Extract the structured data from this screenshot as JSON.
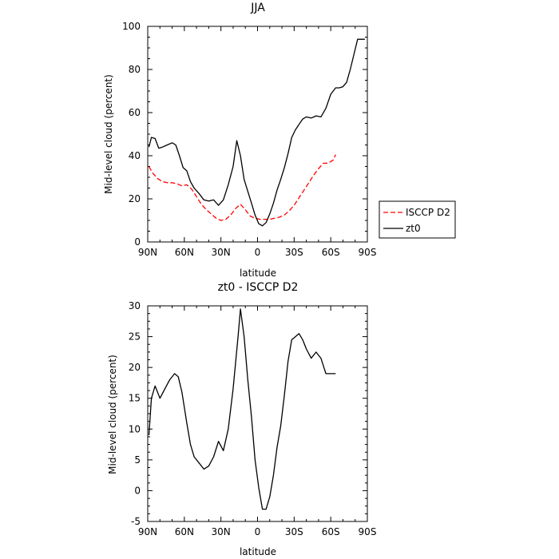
{
  "chart_data": [
    {
      "type": "line",
      "title": "JJA",
      "xlabel": "latitude",
      "ylabel": "Mid-level cloud (percent)",
      "xlim": [
        90,
        -90
      ],
      "ylim": [
        0,
        100
      ],
      "xticks": [
        90,
        60,
        30,
        0,
        -30,
        -60,
        -90
      ],
      "xtick_labels": [
        "90N",
        "60N",
        "30N",
        "0",
        "30S",
        "60S",
        "90S"
      ],
      "yticks": [
        0,
        20,
        40,
        60,
        80,
        100
      ],
      "ytick_labels": [
        "0",
        "20",
        "40",
        "60",
        "80",
        "100"
      ],
      "legend_position": "right",
      "series": [
        {
          "name": "ISCCP D2",
          "color": "#ff0000",
          "dash": "dashed",
          "x": [
            89,
            86,
            82,
            78,
            74,
            70,
            66,
            62,
            58,
            54,
            50,
            46,
            42,
            38,
            34,
            30,
            26,
            22,
            18,
            14,
            10,
            6,
            2,
            -2,
            -6,
            -10,
            -14,
            -18,
            -22,
            -26,
            -30,
            -34,
            -38,
            -42,
            -46,
            -50,
            -54,
            -58,
            -62,
            -64
          ],
          "y": [
            35,
            32,
            29.5,
            28,
            27.5,
            27.5,
            27,
            26,
            26.5,
            24.5,
            21,
            17.5,
            15,
            13,
            11,
            10,
            10.5,
            12.5,
            15.5,
            17.5,
            15,
            12,
            11,
            10.5,
            10.5,
            10.5,
            11,
            11.5,
            12.5,
            14.5,
            17,
            20.5,
            24,
            27.5,
            31,
            34,
            36.5,
            36.5,
            38,
            40.5
          ]
        },
        {
          "name": "zt0",
          "color": "#000000",
          "dash": "solid",
          "x": [
            89,
            87,
            84,
            81,
            78,
            74,
            70,
            67,
            64,
            61,
            58,
            55,
            52,
            48,
            44,
            40,
            36,
            32,
            28,
            24,
            20,
            17,
            14,
            11,
            8,
            5,
            2,
            -1,
            -4,
            -7,
            -10,
            -13,
            -16,
            -19,
            -22,
            -25,
            -28,
            -31,
            -34,
            -37,
            -40,
            -44,
            -48,
            -52,
            -56,
            -60,
            -64,
            -67,
            -70,
            -73,
            -76,
            -79,
            -82,
            -84,
            -86,
            -88
          ],
          "y": [
            44,
            48.5,
            48,
            43.5,
            44,
            45,
            46,
            45,
            40,
            34.5,
            33,
            28,
            25,
            22.5,
            19.5,
            19,
            19.5,
            17,
            19.5,
            26.5,
            35,
            47,
            40,
            29,
            23.5,
            18,
            12.5,
            8.5,
            7.5,
            9,
            13,
            18,
            24,
            29,
            34.5,
            41,
            48.5,
            52,
            54.5,
            57,
            58,
            57.5,
            58.5,
            58,
            62,
            68.5,
            71.5,
            71.5,
            72,
            74,
            80,
            87,
            94,
            94,
            94,
            94
          ]
        }
      ]
    },
    {
      "type": "line",
      "title": "zt0 - ISCCP D2",
      "xlabel": "latitude",
      "ylabel": "Mid-level cloud (percent)",
      "xlim": [
        90,
        -90
      ],
      "ylim": [
        -5,
        30
      ],
      "xticks": [
        90,
        60,
        30,
        0,
        -30,
        -60,
        -90
      ],
      "xtick_labels": [
        "90N",
        "60N",
        "30N",
        "0",
        "30S",
        "60S",
        "90S"
      ],
      "yticks": [
        -5,
        0,
        5,
        10,
        15,
        20,
        25,
        30
      ],
      "ytick_labels": [
        "-5",
        "0",
        "5",
        "10",
        "15",
        "20",
        "25",
        "30"
      ],
      "series": [
        {
          "name": "",
          "color": "#000000",
          "dash": "solid",
          "x": [
            89,
            87,
            84,
            80,
            76,
            72,
            68,
            65,
            62,
            58,
            55,
            52,
            48,
            44,
            40,
            36,
            32,
            28,
            24,
            20,
            16,
            14,
            11,
            8,
            5,
            2,
            -1,
            -4,
            -7,
            -10,
            -13,
            -16,
            -19,
            -22,
            -25,
            -28,
            -31,
            -34,
            -37,
            -40,
            -44,
            -48,
            -52,
            -56,
            -60,
            -63,
            -64
          ],
          "y": [
            9,
            15,
            17,
            15,
            16.5,
            18,
            19,
            18.5,
            16,
            11,
            7.5,
            5.5,
            4.5,
            3.5,
            4,
            5.5,
            8,
            6.5,
            10,
            16.5,
            25,
            29.5,
            25,
            18,
            12,
            5,
            0.5,
            -3,
            -3,
            -1,
            2.5,
            7,
            10.5,
            15.5,
            21,
            24.5,
            25,
            25.5,
            24.5,
            23,
            21.5,
            22.5,
            21.5,
            19,
            19,
            19,
            19
          ]
        }
      ]
    }
  ]
}
